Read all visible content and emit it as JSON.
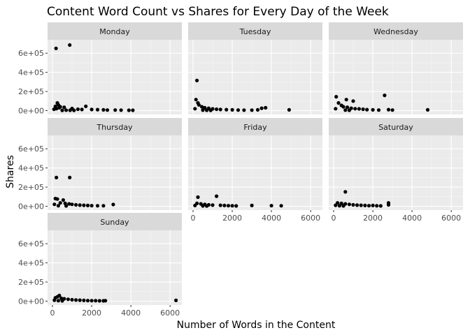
{
  "chart_data": {
    "type": "scatter",
    "title": "Content Word Count vs Shares for Every Day of the Week",
    "xlabel": "Number of Words in the Content",
    "ylabel": "Shares",
    "xlim": [
      -250,
      6600
    ],
    "ylim": [
      -40000,
      740000
    ],
    "x_ticks": [
      0,
      2000,
      4000,
      6000
    ],
    "x_tick_labels": [
      "0",
      "2000",
      "4000",
      "6000"
    ],
    "y_ticks": [
      0,
      200000,
      400000,
      600000
    ],
    "y_tick_labels": [
      "0e+00",
      "2e+05",
      "4e+05",
      "6e+05"
    ],
    "grid": true,
    "point_color": "#000000",
    "panel_background": "#ebebeb",
    "strip_background": "#d9d9d9",
    "panels": [
      {
        "name": "Monday",
        "points": [
          [
            180,
            650000
          ],
          [
            880,
            685000
          ],
          [
            250,
            80000
          ],
          [
            300,
            60000
          ],
          [
            150,
            45000
          ],
          [
            400,
            40000
          ],
          [
            600,
            35000
          ],
          [
            1700,
            45000
          ],
          [
            350,
            30000
          ],
          [
            1000,
            22000
          ],
          [
            200,
            20000
          ],
          [
            80,
            15000
          ],
          [
            1300,
            15000
          ],
          [
            1500,
            12000
          ],
          [
            2000,
            12000
          ],
          [
            2300,
            10000
          ],
          [
            2600,
            8000
          ],
          [
            2800,
            6000
          ],
          [
            3200,
            6000
          ],
          [
            3500,
            5000
          ],
          [
            3900,
            4000
          ],
          [
            4100,
            4000
          ],
          [
            500,
            3000
          ],
          [
            700,
            5000
          ],
          [
            900,
            4000
          ],
          [
            1100,
            3000
          ]
        ]
      },
      {
        "name": "Tuesday",
        "points": [
          [
            200,
            315000
          ],
          [
            150,
            115000
          ],
          [
            250,
            80000
          ],
          [
            300,
            60000
          ],
          [
            450,
            40000
          ],
          [
            600,
            30000
          ],
          [
            800,
            25000
          ],
          [
            1000,
            18000
          ],
          [
            1200,
            15000
          ],
          [
            1400,
            12000
          ],
          [
            1700,
            10000
          ],
          [
            2000,
            8000
          ],
          [
            2300,
            6000
          ],
          [
            2600,
            5000
          ],
          [
            3000,
            5000
          ],
          [
            3300,
            8000
          ],
          [
            3500,
            25000
          ],
          [
            3700,
            30000
          ],
          [
            4900,
            8000
          ],
          [
            100,
            20000
          ],
          [
            500,
            5000
          ],
          [
            700,
            4000
          ],
          [
            900,
            3000
          ]
        ]
      },
      {
        "name": "Wednesday",
        "points": [
          [
            130,
            145000
          ],
          [
            2600,
            160000
          ],
          [
            650,
            115000
          ],
          [
            250,
            80000
          ],
          [
            1000,
            100000
          ],
          [
            400,
            55000
          ],
          [
            500,
            40000
          ],
          [
            700,
            35000
          ],
          [
            900,
            25000
          ],
          [
            1100,
            20000
          ],
          [
            1300,
            18000
          ],
          [
            1500,
            15000
          ],
          [
            1700,
            10000
          ],
          [
            2000,
            8000
          ],
          [
            2300,
            6000
          ],
          [
            2800,
            10000
          ],
          [
            3000,
            6000
          ],
          [
            4800,
            8000
          ],
          [
            100,
            20000
          ],
          [
            600,
            5000
          ],
          [
            800,
            4000
          ]
        ]
      },
      {
        "name": "Thursday",
        "points": [
          [
            200,
            300000
          ],
          [
            880,
            300000
          ],
          [
            150,
            80000
          ],
          [
            250,
            75000
          ],
          [
            550,
            65000
          ],
          [
            400,
            35000
          ],
          [
            650,
            30000
          ],
          [
            850,
            25000
          ],
          [
            1000,
            20000
          ],
          [
            1200,
            15000
          ],
          [
            1400,
            12000
          ],
          [
            1600,
            10000
          ],
          [
            1800,
            8000
          ],
          [
            2000,
            6000
          ],
          [
            2300,
            5000
          ],
          [
            2600,
            5000
          ],
          [
            3100,
            18000
          ],
          [
            100,
            20000
          ],
          [
            300,
            5000
          ],
          [
            700,
            4000
          ]
        ]
      },
      {
        "name": "Friday",
        "points": [
          [
            250,
            95000
          ],
          [
            1200,
            105000
          ],
          [
            200,
            30000
          ],
          [
            400,
            25000
          ],
          [
            600,
            20000
          ],
          [
            800,
            15000
          ],
          [
            1000,
            12000
          ],
          [
            1400,
            10000
          ],
          [
            1600,
            8000
          ],
          [
            1800,
            6000
          ],
          [
            2000,
            5000
          ],
          [
            2200,
            4000
          ],
          [
            3000,
            8000
          ],
          [
            4000,
            6000
          ],
          [
            4500,
            5000
          ],
          [
            100,
            8000
          ],
          [
            500,
            4000
          ],
          [
            700,
            3000
          ]
        ]
      },
      {
        "name": "Saturday",
        "points": [
          [
            600,
            150000
          ],
          [
            200,
            35000
          ],
          [
            400,
            30000
          ],
          [
            600,
            25000
          ],
          [
            800,
            20000
          ],
          [
            1000,
            15000
          ],
          [
            1200,
            12000
          ],
          [
            1400,
            10000
          ],
          [
            1600,
            8000
          ],
          [
            1800,
            6000
          ],
          [
            2000,
            8000
          ],
          [
            2200,
            5000
          ],
          [
            2400,
            4000
          ],
          [
            2800,
            35000
          ],
          [
            2800,
            15000
          ],
          [
            100,
            10000
          ],
          [
            300,
            5000
          ],
          [
            500,
            4000
          ]
        ]
      },
      {
        "name": "Sunday",
        "points": [
          [
            350,
            60000
          ],
          [
            250,
            45000
          ],
          [
            150,
            35000
          ],
          [
            450,
            30000
          ],
          [
            600,
            25000
          ],
          [
            800,
            20000
          ],
          [
            1000,
            15000
          ],
          [
            1200,
            12000
          ],
          [
            1400,
            10000
          ],
          [
            1600,
            8000
          ],
          [
            1800,
            6000
          ],
          [
            2000,
            5000
          ],
          [
            2200,
            5000
          ],
          [
            2400,
            4000
          ],
          [
            2600,
            4000
          ],
          [
            2700,
            5000
          ],
          [
            6300,
            8000
          ],
          [
            100,
            10000
          ],
          [
            300,
            5000
          ],
          [
            500,
            4000
          ]
        ]
      }
    ]
  }
}
